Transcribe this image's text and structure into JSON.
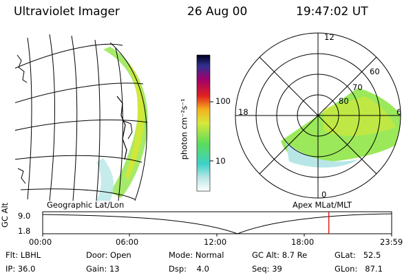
{
  "header": {
    "instrument": "Ultraviolet Imager",
    "date": "26 Aug 00",
    "time": "19:47:02 UT"
  },
  "colorbar": {
    "unit_label": "photon cm⁻²s⁻¹",
    "ticks": [
      "100",
      "10"
    ]
  },
  "panels": {
    "left_label": "Geographic Lat/Lon",
    "right_label": "Apex MLat/MLT"
  },
  "polar_plot": {
    "mlt_labels": [
      "12",
      "18",
      "6",
      "0"
    ],
    "mlat_labels": [
      "60",
      "70",
      "80"
    ]
  },
  "timeline": {
    "axis_label": "GC Alt",
    "y_ticks": [
      "9.0",
      "1.8"
    ],
    "x_ticks": [
      "00:00",
      "06:00",
      "12:00",
      "18:00",
      "23:59"
    ],
    "current_time_fraction": 0.82
  },
  "status": {
    "filter": "Flt: LBHL",
    "ip": "IP: 36.0",
    "door": "Door: Open",
    "gain": "Gain: 13",
    "mode": "Mode: Normal",
    "dsp": "Dsp:    4.0",
    "gc_alt": "GC Alt: 8.7 Re",
    "seq": "Seq: 39",
    "glat": "GLat:   52.5",
    "glon": "GLon:   87.1"
  },
  "colors": {
    "marker": "#e00000",
    "aurora_low": "#b8e6e6",
    "aurora_mid": "#9be85a",
    "aurora_high": "#cfe83a"
  }
}
